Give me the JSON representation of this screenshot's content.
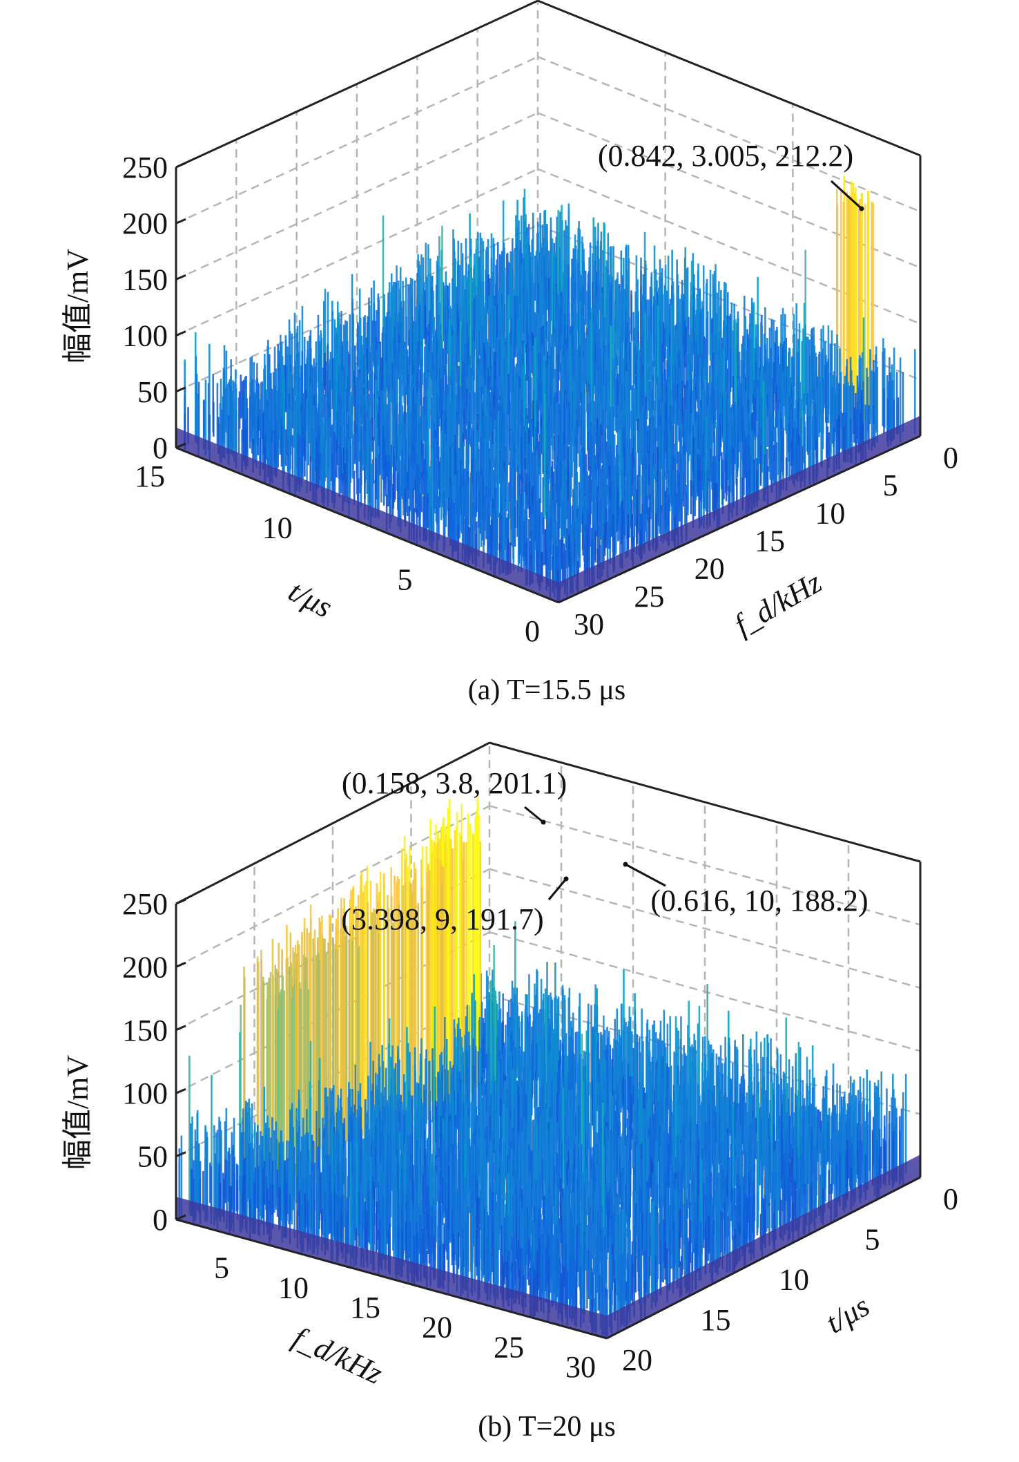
{
  "chart_data": [
    {
      "type": "surface",
      "title": "(a) T=15.5 μs",
      "zlabel": "幅值/mV",
      "xlabel": "t/μs",
      "ylabel": "f_d/kHz",
      "zlim": [
        0,
        250
      ],
      "xlim": [
        0,
        15
      ],
      "ylim": [
        0,
        30
      ],
      "zticks": [
        "0",
        "50",
        "100",
        "150",
        "200",
        "250"
      ],
      "xticks": [
        "0",
        "5",
        "10",
        "15"
      ],
      "yticks": [
        "0",
        "5",
        "10",
        "15",
        "20",
        "25",
        "30"
      ],
      "grid": true,
      "colormap": "parula",
      "annotations": [
        {
          "fd": 0.842,
          "t": 3.005,
          "amplitude": 212.2,
          "label": "(0.842, 3.005, 212.2)"
        }
      ]
    },
    {
      "type": "surface",
      "title": "(b) T=20 μs",
      "zlabel": "幅值/mV",
      "xlabel": "f_d/kHz",
      "ylabel": "t/μs",
      "zlim": [
        0,
        250
      ],
      "xlim": [
        0,
        30
      ],
      "ylim": [
        0,
        20
      ],
      "zticks": [
        "0",
        "50",
        "100",
        "150",
        "200",
        "250"
      ],
      "xticks": [
        "5",
        "10",
        "15",
        "20",
        "25",
        "30"
      ],
      "yticks": [
        "0",
        "5",
        "10",
        "15",
        "20"
      ],
      "grid": true,
      "colormap": "parula",
      "annotations": [
        {
          "fd": 0.158,
          "t": 3.8,
          "amplitude": 201.1,
          "label": "(0.158, 3.8, 201.1)"
        },
        {
          "fd": 3.398,
          "t": 9,
          "amplitude": 191.7,
          "label": "(3.398, 9, 191.7)"
        },
        {
          "fd": 0.616,
          "t": 10,
          "amplitude": 188.2,
          "label": "(0.616, 10, 188.2)"
        }
      ]
    }
  ]
}
